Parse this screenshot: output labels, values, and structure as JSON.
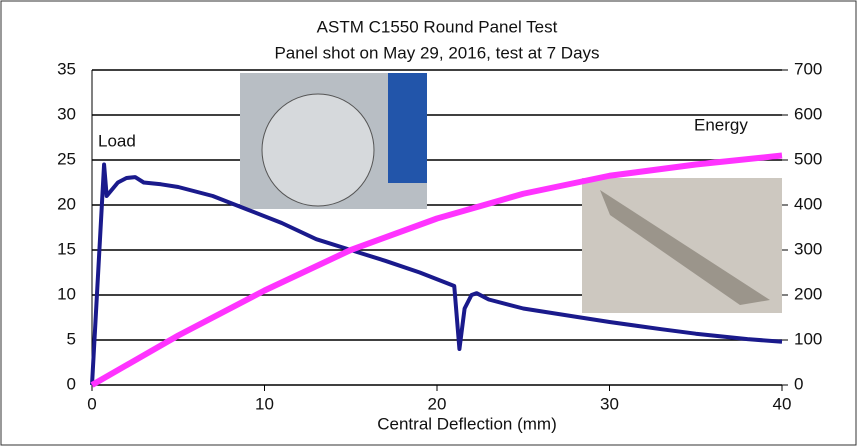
{
  "chart_data": {
    "type": "line",
    "title": "ASTM C1550 Round Panel Test",
    "subtitle": "Panel shot on May 29, 2016, test at 7 Days",
    "x_label": "Central Deflection (mm)",
    "annotations": [
      "Load",
      "Energy"
    ],
    "xlim": [
      0,
      40
    ],
    "xticks": [
      0,
      10,
      20,
      30,
      40
    ],
    "ylim": [
      0,
      35
    ],
    "yticks": [
      0,
      5,
      10,
      15,
      20,
      25,
      30,
      35
    ],
    "y2lim": [
      0,
      700
    ],
    "y2ticks": [
      0,
      100,
      200,
      300,
      400,
      500,
      600,
      700
    ],
    "grid": true,
    "series": [
      {
        "name": "Load",
        "color": "#1a1a8c",
        "x": [
          0,
          0.7,
          0.85,
          1.5,
          2,
          2.5,
          3,
          4,
          5,
          7,
          9,
          11,
          13,
          15,
          17,
          19,
          21,
          21.3,
          21.6,
          22,
          22.3,
          23,
          25,
          28,
          30,
          33,
          35,
          38,
          40
        ],
        "values": [
          0,
          24.5,
          21,
          22.5,
          23,
          23.1,
          22.5,
          22.3,
          22,
          21,
          19.5,
          18,
          16.2,
          15,
          13.8,
          12.5,
          11,
          4,
          8.5,
          10,
          10.2,
          9.5,
          8.5,
          7.6,
          7,
          6.2,
          5.7,
          5.1,
          4.8
        ]
      },
      {
        "name": "Energy",
        "color": "#ff33ff",
        "axis": "y2",
        "x": [
          0,
          5,
          10,
          15,
          20,
          25,
          30,
          35,
          40
        ],
        "values": [
          0,
          110,
          210,
          300,
          370,
          425,
          465,
          490,
          510
        ]
      }
    ]
  }
}
